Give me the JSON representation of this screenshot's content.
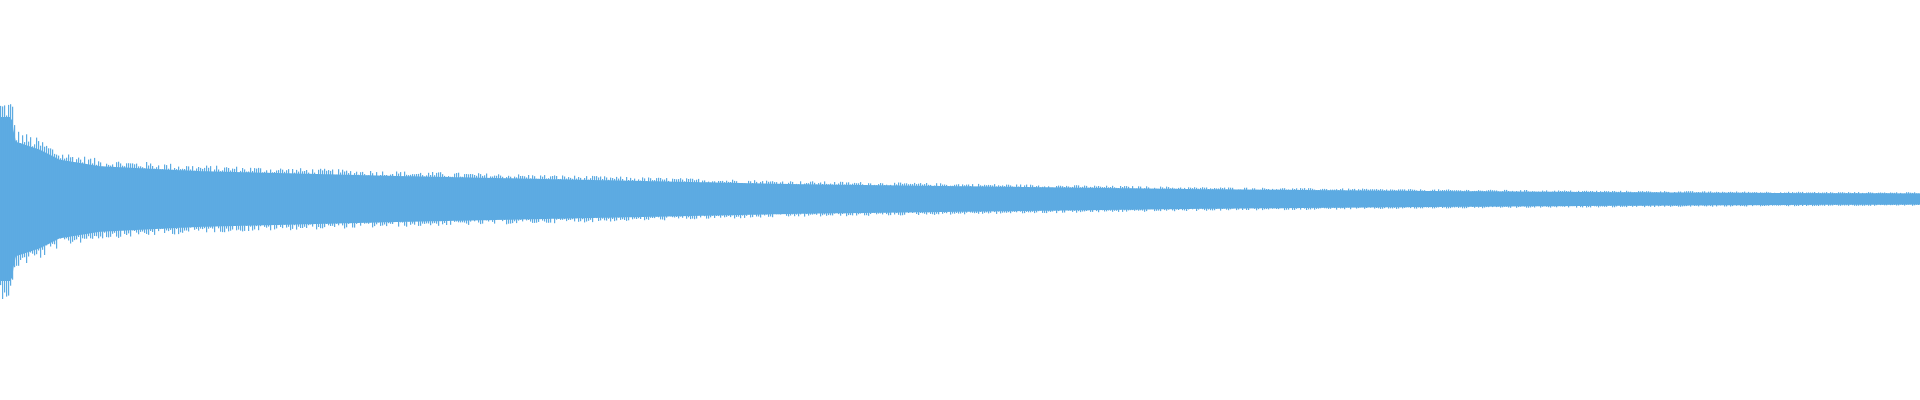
{
  "chart_data": {
    "type": "area",
    "title": "",
    "xlabel": "",
    "ylabel": "",
    "grid": false,
    "legend": "none",
    "color": "#5dabe2",
    "ylim": [
      -1,
      1
    ],
    "envelope": {
      "x": [
        0,
        0.006,
        0.008,
        0.021,
        0.031,
        0.052,
        0.104,
        0.208,
        0.3125,
        0.417,
        0.521,
        0.625,
        0.729,
        0.833,
        0.9375,
        1.0
      ],
      "amplitude": [
        0.5,
        0.5,
        0.35,
        0.3,
        0.24,
        0.2,
        0.17,
        0.14,
        0.115,
        0.09,
        0.075,
        0.06,
        0.05,
        0.042,
        0.036,
        0.034
      ]
    }
  }
}
